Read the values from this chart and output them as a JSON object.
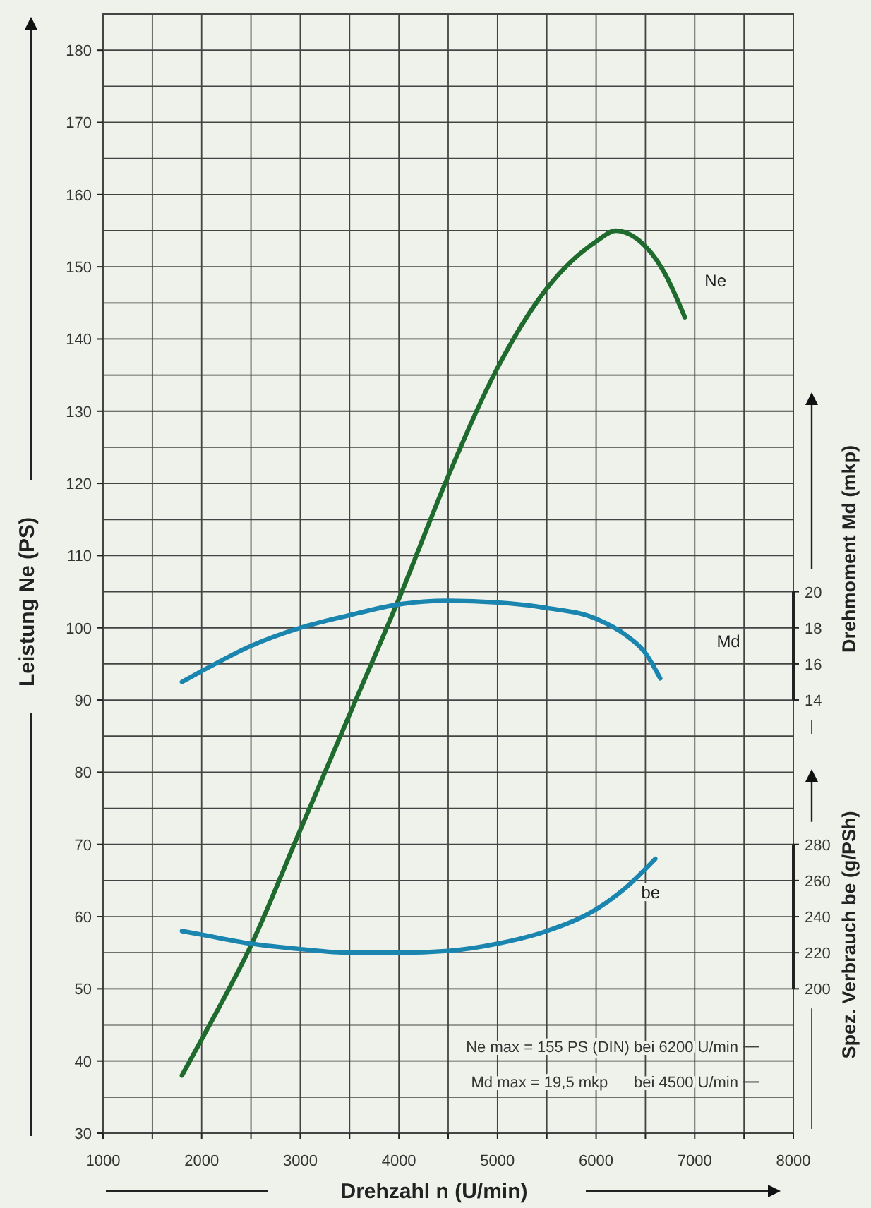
{
  "chart_data": {
    "type": "line",
    "xlabel": "Drehzahl n (U/min)",
    "ylabel": "Leistung Ne (PS)",
    "y2label": "Drehmoment Md (mkp)",
    "y3label": "Spez. Verbrauch be (g/PSh)",
    "xlim": [
      1000,
      8000
    ],
    "xticks": [
      1000,
      {
        "value": 1500,
        "label": null
      },
      2000,
      {
        "value": 2500,
        "label": null
      },
      3000,
      {
        "value": 3500,
        "label": null
      },
      4000,
      {
        "value": 4500,
        "label": null
      },
      5000,
      {
        "value": 5500,
        "label": null
      },
      6000,
      {
        "value": 6500,
        "label": null
      },
      7000,
      {
        "value": 7500,
        "label": null
      },
      8000
    ],
    "ylim": [
      30,
      185
    ],
    "yticks": [
      30,
      {
        "value": 35,
        "label": null
      },
      40,
      {
        "value": 45,
        "label": null
      },
      50,
      {
        "value": 55,
        "label": null
      },
      60,
      {
        "value": 65,
        "label": null
      },
      70,
      {
        "value": 75,
        "label": null
      },
      80,
      {
        "value": 85,
        "label": null
      },
      90,
      {
        "value": 95,
        "label": null
      },
      100,
      {
        "value": 105,
        "label": null
      },
      110,
      {
        "value": 115,
        "label": null
      },
      120,
      {
        "value": 125,
        "label": null
      },
      130,
      {
        "value": 135,
        "label": null
      },
      140,
      {
        "value": 145,
        "label": null
      },
      150,
      {
        "value": 155,
        "label": null
      },
      160,
      {
        "value": 165,
        "label": null
      },
      170,
      {
        "value": 175,
        "label": null
      },
      180
    ],
    "y2lim": [
      -10,
      52
    ],
    "y2ticks": [
      14,
      16,
      18,
      20
    ],
    "y3lim": [
      120,
      740
    ],
    "y3ticks": [
      200,
      220,
      240,
      260,
      280
    ],
    "grid": true,
    "marker": "none",
    "line_style": "solid",
    "series": [
      {
        "name": "Ne",
        "color": "#1f6b2e",
        "x": [
          1800,
          2000,
          2500,
          3000,
          3500,
          4000,
          4500,
          5000,
          5500,
          6000,
          6200,
          6400,
          6700,
          6900
        ],
        "values": [
          38,
          43,
          56,
          72,
          88,
          104,
          121,
          136,
          147,
          153.5,
          155,
          154,
          149,
          143
        ]
      },
      {
        "name": "Md",
        "color": "#1a86b0",
        "axis": "y2",
        "x": [
          1800,
          2000,
          2500,
          3000,
          3500,
          4000,
          4500,
          5000,
          5500,
          6000,
          6300,
          6500,
          6650
        ],
        "values": [
          15,
          15.6,
          17,
          18,
          18.7,
          19.3,
          19.5,
          19.4,
          19.1,
          18.5,
          17.6,
          16.6,
          15.2
        ]
      },
      {
        "name": "be",
        "color": "#1a86b0",
        "axis": "y3",
        "x": [
          1800,
          2000,
          2500,
          3000,
          3500,
          4000,
          4500,
          5000,
          5500,
          6000,
          6300,
          6600
        ],
        "values": [
          232,
          230,
          225,
          222,
          220,
          220,
          221,
          225,
          232,
          244,
          256,
          272
        ]
      }
    ],
    "annotations": [
      "Ne max = 155 PS (DIN) bei 6200 U/min",
      "Md max = 19,5 mkp      bei 4500 U/min"
    ]
  }
}
